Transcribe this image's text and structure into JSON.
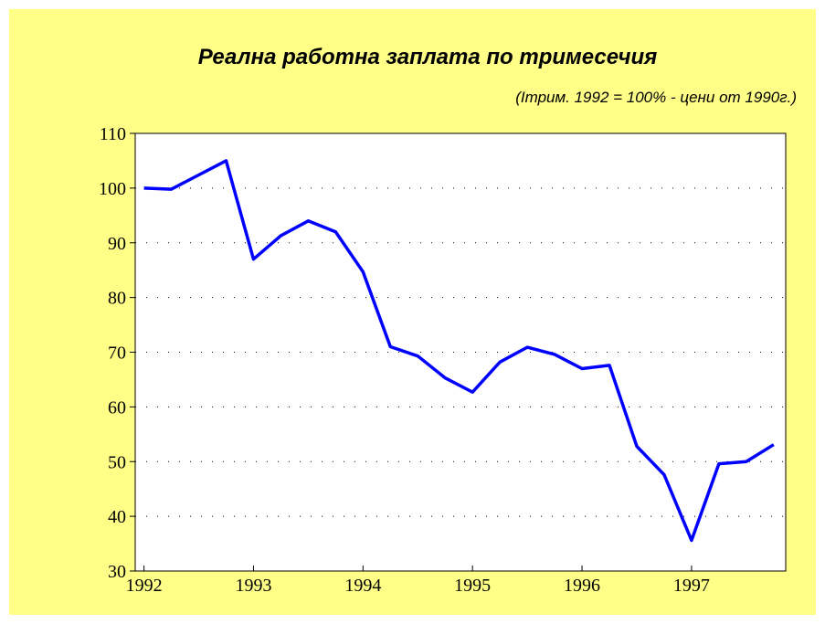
{
  "chart_data": {
    "type": "line",
    "title": "Реална работна заплата по тримесечия",
    "subtitle": "(Iтрим. 1992 = 100% - цени от 1990г.)",
    "x": [
      1992,
      1992.25,
      1992.5,
      1992.75,
      1993,
      1993.25,
      1993.5,
      1993.75,
      1994,
      1994.25,
      1994.5,
      1994.75,
      1995,
      1995.25,
      1995.5,
      1995.75,
      1996,
      1996.25,
      1996.5,
      1996.75,
      1997,
      1997.25,
      1997.5,
      1997.75
    ],
    "series": [
      {
        "color": "#0000ff",
        "values": [
          100,
          99.8,
          102.4,
          105,
          87,
          91.3,
          94,
          92,
          84.7,
          71,
          69.3,
          65.3,
          62.7,
          68.2,
          70.9,
          69.6,
          67,
          67.6,
          52.8,
          47.6,
          35.6,
          49.6,
          50,
          53.1
        ]
      }
    ],
    "xlim": [
      1991.92,
      1997.86
    ],
    "xticks": [
      1992,
      1993,
      1994,
      1995,
      1996,
      1997
    ],
    "ylim": [
      30,
      110
    ],
    "yticks": [
      30,
      40,
      50,
      60,
      70,
      80,
      90,
      100,
      110
    ],
    "grid": true
  }
}
